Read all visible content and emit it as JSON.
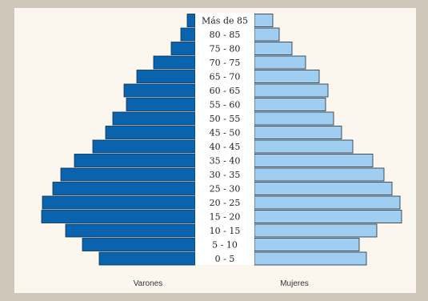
{
  "chart_data": {
    "type": "bar",
    "orientation": "horizontal",
    "categories": [
      "0 - 5",
      "5 - 10",
      "10 - 15",
      "15 - 20",
      "20 - 25",
      "25 - 30",
      "30 - 35",
      "35 - 40",
      "40 - 45",
      "45 - 50",
      "50 - 55",
      "55 - 60",
      "60 - 65",
      "65 - 70",
      "70 - 75",
      "75 - 80",
      "80 - 85",
      "Más de 85"
    ],
    "series": [
      {
        "name": "Varones",
        "color": "#0a63ad",
        "values": [
          120,
          141,
          162,
          192,
          191,
          178,
          168,
          151,
          128,
          112,
          103,
          86,
          89,
          73,
          52,
          30,
          18,
          10
        ]
      },
      {
        "name": "Mujeres",
        "color": "#9fcef0",
        "values": [
          140,
          131,
          153,
          184,
          182,
          172,
          162,
          148,
          123,
          109,
          99,
          89,
          92,
          81,
          64,
          47,
          31,
          23
        ]
      }
    ],
    "xlim": [
      0,
      195
    ]
  }
}
